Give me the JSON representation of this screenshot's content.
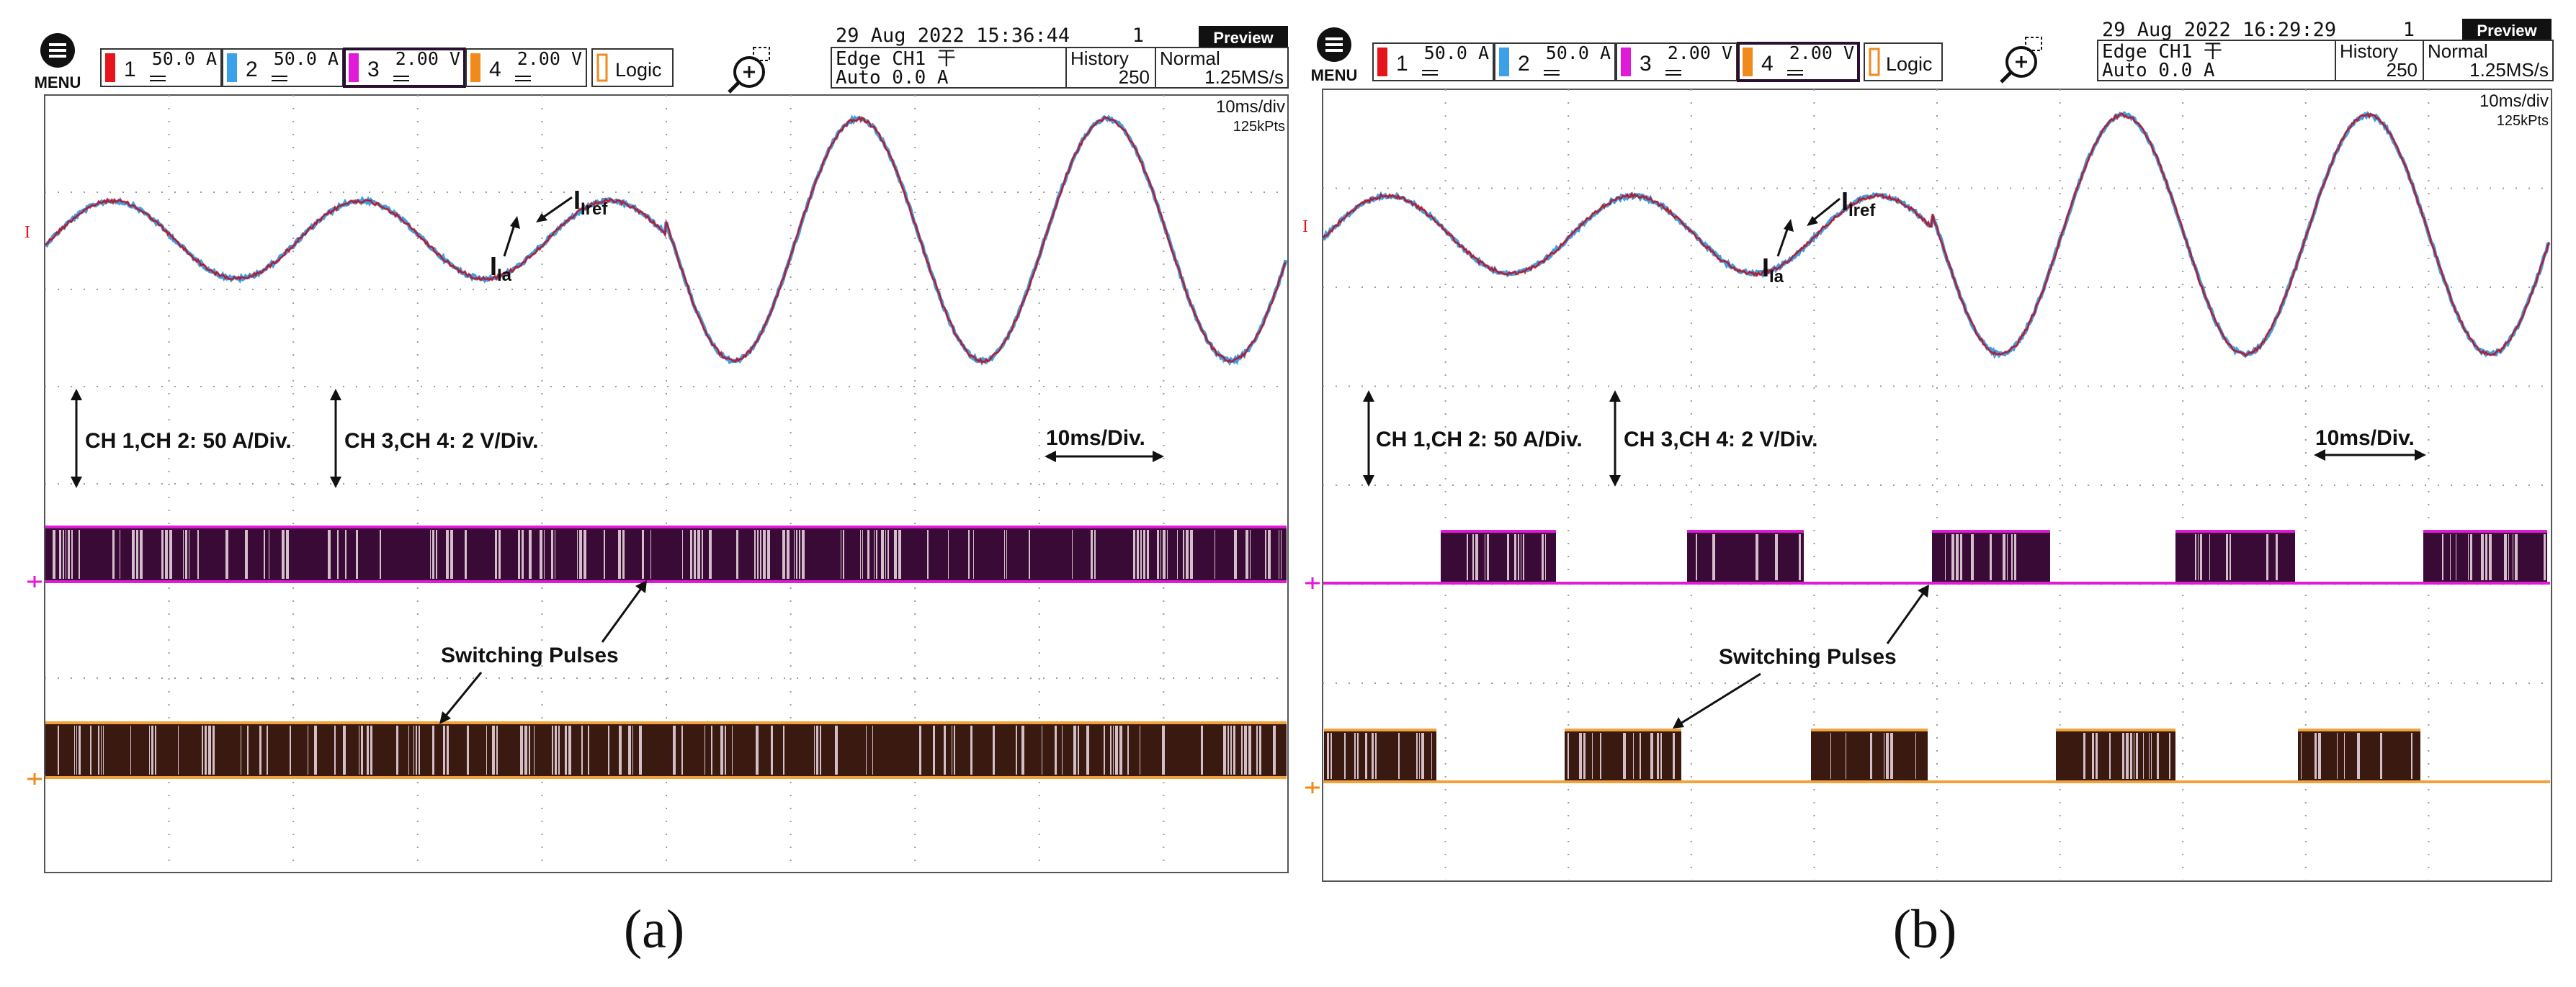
{
  "panels": [
    {
      "id": "a",
      "caption": "(a)",
      "menu_label": "MENU",
      "channels": [
        {
          "num": "1",
          "scale": "50.0 A",
          "color": "#e8141c"
        },
        {
          "num": "2",
          "scale": "50.0 A",
          "color": "#3aa0e8"
        },
        {
          "num": "3",
          "scale": "2.00 V",
          "color": "#e01ad6"
        },
        {
          "num": "4",
          "scale": "2.00 V",
          "color": "#f08a1c"
        }
      ],
      "selected_channel": 2,
      "logic_label": "Logic",
      "date": "29 Aug 2022 15:36:44",
      "frame_count": "1",
      "preview_label": "Preview",
      "trigger_line1": "Edge CH1 ⼲",
      "trigger_line2": "Auto 0.0 A",
      "history_label": "History",
      "history_value": "250",
      "mode_label": "Normal",
      "sample_rate": "1.25MS/s",
      "timebase": "10ms/div",
      "points": "125kPts",
      "label_iref": "Iref",
      "label_ia": "Ia",
      "annotation_ch12": "CH 1,CH 2: 50 A/Div.",
      "annotation_ch34": "CH 3,CH 4: 2 V/Div.",
      "annotation_time": "10ms/Div.",
      "annotation_pulses": "Switching Pulses",
      "ground_marker": "I"
    },
    {
      "id": "b",
      "caption": "(b)",
      "menu_label": "MENU",
      "channels": [
        {
          "num": "1",
          "scale": "50.0 A",
          "color": "#e8141c"
        },
        {
          "num": "2",
          "scale": "50.0 A",
          "color": "#3aa0e8"
        },
        {
          "num": "3",
          "scale": "2.00 V",
          "color": "#e01ad6"
        },
        {
          "num": "4",
          "scale": "2.00 V",
          "color": "#f08a1c"
        }
      ],
      "selected_channel": 3,
      "logic_label": "Logic",
      "date": "29 Aug 2022 16:29:29",
      "frame_count": "1",
      "preview_label": "Preview",
      "trigger_line1": "Edge CH1 ⼲",
      "trigger_line2": "Auto 0.0 A",
      "history_label": "History",
      "history_value": "250",
      "mode_label": "Normal",
      "sample_rate": "1.25MS/s",
      "timebase": "10ms/div",
      "points": "125kPts",
      "label_iref": "Iref",
      "label_ia": "Ia",
      "annotation_ch12": "CH 1,CH 2: 50 A/Div.",
      "annotation_ch34": "CH 3,CH 4: 2 V/Div.",
      "annotation_time": "10ms/Div.",
      "annotation_pulses": "Switching Pulses",
      "ground_marker": "I"
    }
  ],
  "colors": {
    "grid_dots": "#9a9a9a",
    "ch3_fill": "#3a0a36",
    "ch4_fill": "#3a1a10",
    "ch3_trace": "#e01ad6",
    "ch4_trace": "#f0a23c"
  },
  "icons": [
    "menu-icon",
    "zoom-icon",
    "arrow-icon"
  ]
}
